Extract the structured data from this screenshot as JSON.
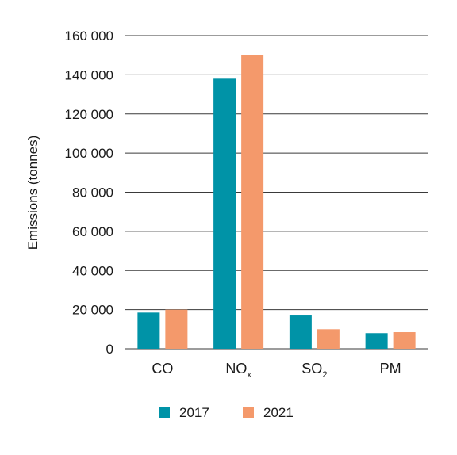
{
  "chart_data": {
    "type": "bar",
    "ylabel": "Emissions (tonnes)",
    "xlabel": "",
    "ylim": [
      0,
      160000
    ],
    "yticks": [
      0,
      20000,
      40000,
      60000,
      80000,
      100000,
      120000,
      140000,
      160000
    ],
    "ytick_labels": [
      "0",
      "20 000",
      "40 000",
      "60 000",
      "80 000",
      "100 000",
      "120 000",
      "140 000",
      "160 000"
    ],
    "categories": [
      {
        "base": "CO",
        "sub": ""
      },
      {
        "base": "NO",
        "sub": "x"
      },
      {
        "base": "SO",
        "sub": "2"
      },
      {
        "base": "PM",
        "sub": ""
      }
    ],
    "series": [
      {
        "name": "2017",
        "color": "#0093a7",
        "values": [
          18500,
          138000,
          17000,
          8000
        ]
      },
      {
        "name": "2021",
        "color": "#f4996b",
        "values": [
          20000,
          150000,
          10000,
          8500
        ]
      }
    ],
    "grid": true,
    "legend_position": "bottom-center"
  }
}
